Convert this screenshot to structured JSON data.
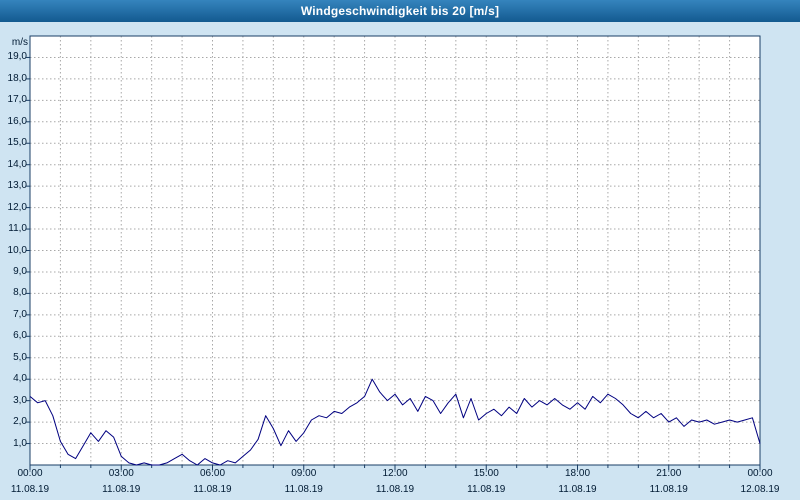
{
  "window": {
    "title": "Windgeschwindigkeit bis 20 [m/s]"
  },
  "colors": {
    "background": "#cfe4f2",
    "titlebar_top": "#3584bd",
    "titlebar_bottom": "#135a90",
    "plot_background": "#ffffff",
    "frame": "#1a3e66",
    "grid": "#a8a8a8",
    "line": "#000080",
    "label_text": "#001a33"
  },
  "chart_data": {
    "type": "line",
    "title": "Windgeschwindigkeit bis 20 [m/s]",
    "ylabel": "m/s",
    "xlabel": "",
    "ylim": [
      0,
      20
    ],
    "xlim_hours": [
      0,
      24
    ],
    "grid": "dashed; vertical every 1 hour, horizontal every 1.0 m/s",
    "legend": "none",
    "y_tick_labels": [
      "1,0",
      "2,0",
      "3,0",
      "4,0",
      "5,0",
      "6,0",
      "7,0",
      "8,0",
      "9,0",
      "10,0",
      "11,0",
      "12,0",
      "13,0",
      "14,0",
      "15,0",
      "16,0",
      "17,0",
      "18,0",
      "19,0"
    ],
    "x_ticks": [
      {
        "time": "00:00",
        "date": "11.08.19"
      },
      {
        "time": "03:00",
        "date": "11.08.19"
      },
      {
        "time": "06:00",
        "date": "11.08.19"
      },
      {
        "time": "09:00",
        "date": "11.08.19"
      },
      {
        "time": "12:00",
        "date": "11.08.19"
      },
      {
        "time": "15:00",
        "date": "11.08.19"
      },
      {
        "time": "18:00",
        "date": "11.08.19"
      },
      {
        "time": "21:00",
        "date": "11.08.19"
      },
      {
        "time": "00:00",
        "date": "12.08.19"
      }
    ],
    "x_start_hour": 0,
    "x_step_hours": 0.25,
    "values": [
      3.2,
      2.9,
      3.0,
      2.3,
      1.1,
      0.5,
      0.3,
      0.9,
      1.5,
      1.1,
      1.6,
      1.3,
      0.4,
      0.1,
      0.0,
      0.1,
      0.0,
      0.0,
      0.1,
      0.3,
      0.5,
      0.2,
      0.0,
      0.3,
      0.1,
      0.0,
      0.2,
      0.1,
      0.4,
      0.7,
      1.2,
      2.3,
      1.7,
      0.9,
      1.6,
      1.1,
      1.5,
      2.1,
      2.3,
      2.2,
      2.5,
      2.4,
      2.7,
      2.9,
      3.2,
      4.0,
      3.4,
      3.0,
      3.3,
      2.8,
      3.1,
      2.5,
      3.2,
      3.0,
      2.4,
      2.9,
      3.3,
      2.2,
      3.1,
      2.1,
      2.4,
      2.6,
      2.3,
      2.7,
      2.4,
      3.1,
      2.7,
      3.0,
      2.8,
      3.1,
      2.8,
      2.6,
      2.9,
      2.6,
      3.2,
      2.9,
      3.3,
      3.1,
      2.8,
      2.4,
      2.2,
      2.5,
      2.2,
      2.4,
      2.0,
      2.2,
      1.8,
      2.1,
      2.0,
      2.1,
      1.9,
      2.0,
      2.1,
      2.0,
      2.1,
      2.2,
      1.0
    ]
  }
}
